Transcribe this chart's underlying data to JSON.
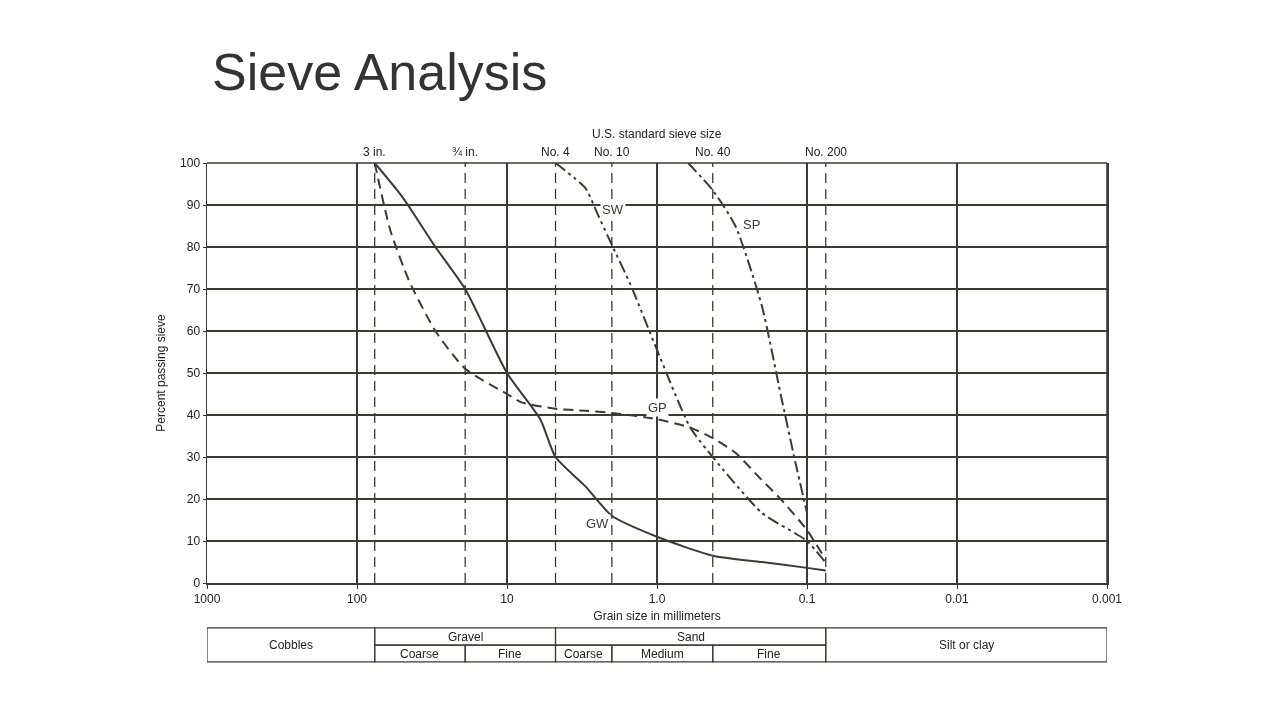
{
  "chart_data": {
    "type": "line",
    "title": "Sieve Analysis",
    "xlabel": "Grain size in millimeters",
    "ylabel": "Percent passing sieve",
    "x2label": "U.S. standard sieve size",
    "log": "x",
    "grid": true,
    "legend": false,
    "marker": "none",
    "xlim": [
      1000,
      0.001
    ],
    "xticks": [
      1000,
      100,
      10,
      {
        "value": 1,
        "label": "1.0"
      },
      0.1,
      0.01,
      0.001
    ],
    "ylim": [
      0,
      100
    ],
    "yticks": [
      0,
      10,
      20,
      30,
      40,
      50,
      60,
      70,
      80,
      90,
      100
    ],
    "ref_lines": [
      {
        "axis": "x",
        "value": 76.2,
        "label": "3 in.",
        "line_style": "dashed"
      },
      {
        "axis": "x",
        "value": 19,
        "label": "¾ in.",
        "line_style": "dashed"
      },
      {
        "axis": "x",
        "value": 4.75,
        "label": "No. 4",
        "line_style": "dashed"
      },
      {
        "axis": "x",
        "value": 2,
        "label": "No. 10",
        "line_style": "dashed"
      },
      {
        "axis": "x",
        "value": 0.425,
        "label": "No. 40",
        "line_style": "dashed"
      },
      {
        "axis": "x",
        "value": 0.075,
        "label": "No. 200",
        "line_style": "dashed"
      }
    ],
    "series": [
      {
        "name": "GW",
        "color": "#3b3a33",
        "line_style": "solid",
        "x": [
          76.2,
          50,
          30,
          19,
          10,
          6,
          4.75,
          3,
          2,
          1,
          0.425,
          0.2,
          0.1,
          0.075
        ],
        "values": [
          100,
          92,
          80,
          70,
          50,
          39,
          30,
          23,
          16,
          11,
          6.5,
          5,
          3.6,
          3
        ]
      },
      {
        "name": "GP",
        "color": "#3b3a33",
        "line_style": "dashed",
        "x": [
          76.2,
          60,
          45,
          30,
          19,
          10,
          8,
          4.75,
          3,
          2,
          1,
          0.6,
          0.425,
          0.3,
          0.2,
          0.15,
          0.1,
          0.075
        ],
        "values": [
          100,
          84,
          72,
          60,
          51,
          45,
          43,
          41.5,
          41,
          40.5,
          39,
          37,
          34.5,
          31,
          24.5,
          20,
          12.6,
          5.5
        ]
      },
      {
        "name": "SW",
        "color": "#3b3a33",
        "line_style": "dashdotdot",
        "x": [
          4.75,
          3,
          2.5,
          2,
          1.5,
          1,
          0.6,
          0.425,
          0.2,
          0.1,
          0.075
        ],
        "values": [
          100,
          94,
          88,
          80.5,
          71,
          55.5,
          37,
          30,
          16.7,
          10,
          4.8
        ]
      },
      {
        "name": "SP",
        "color": "#3b3a33",
        "line_style": "dashdot",
        "x": [
          0.62,
          0.425,
          0.3,
          0.2,
          0.15,
          0.12,
          0.1
        ],
        "values": [
          100,
          93.5,
          85,
          66,
          45,
          29,
          16.7
        ]
      }
    ],
    "annotations": [
      "Cobbles",
      "Gravel",
      "Coarse",
      "Fine",
      "Sand",
      "Coarse",
      "Medium",
      "Fine",
      "Silt or clay"
    ]
  }
}
